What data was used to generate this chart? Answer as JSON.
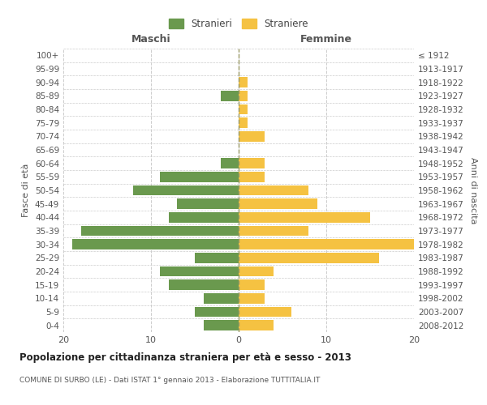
{
  "age_groups": [
    "0-4",
    "5-9",
    "10-14",
    "15-19",
    "20-24",
    "25-29",
    "30-34",
    "35-39",
    "40-44",
    "45-49",
    "50-54",
    "55-59",
    "60-64",
    "65-69",
    "70-74",
    "75-79",
    "80-84",
    "85-89",
    "90-94",
    "95-99",
    "100+"
  ],
  "birth_years": [
    "2008-2012",
    "2003-2007",
    "1998-2002",
    "1993-1997",
    "1988-1992",
    "1983-1987",
    "1978-1982",
    "1973-1977",
    "1968-1972",
    "1963-1967",
    "1958-1962",
    "1953-1957",
    "1948-1952",
    "1943-1947",
    "1938-1942",
    "1933-1937",
    "1928-1932",
    "1923-1927",
    "1918-1922",
    "1913-1917",
    "≤ 1912"
  ],
  "maschi": [
    4,
    5,
    4,
    8,
    9,
    5,
    19,
    18,
    8,
    7,
    12,
    9,
    2,
    0,
    0,
    0,
    0,
    2,
    0,
    0,
    0
  ],
  "femmine": [
    4,
    6,
    3,
    3,
    4,
    16,
    20,
    8,
    15,
    9,
    8,
    3,
    3,
    0,
    3,
    1,
    1,
    1,
    1,
    0,
    0
  ],
  "maschi_color": "#6a994e",
  "femmine_color": "#f5c242",
  "background_color": "#ffffff",
  "grid_color": "#cccccc",
  "title": "Popolazione per cittadinanza straniera per età e sesso - 2013",
  "subtitle": "COMUNE DI SURBO (LE) - Dati ISTAT 1° gennaio 2013 - Elaborazione TUTTITALIA.IT",
  "ylabel_left": "Fasce di età",
  "ylabel_right": "Anni di nascita",
  "xlabel_left": "Maschi",
  "xlabel_right": "Femmine",
  "legend_stranieri": "Stranieri",
  "legend_straniere": "Straniere",
  "xlim": 20,
  "bar_height": 0.75
}
